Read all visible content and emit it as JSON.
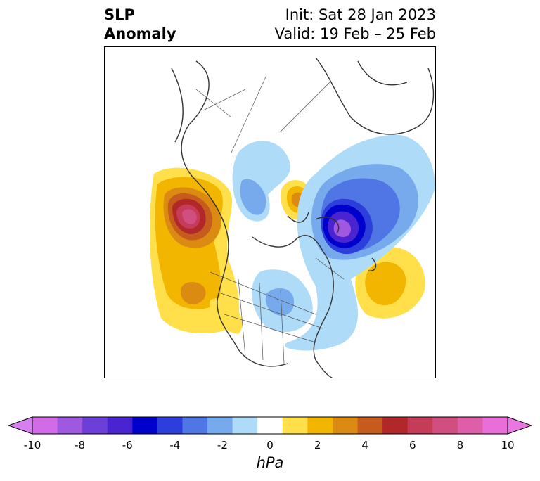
{
  "header": {
    "field_line1": "SLP",
    "field_line2": "Anomaly",
    "init_text": "Init: Sat 28 Jan 2023",
    "valid_text": "Valid: 19 Feb – 25 Feb"
  },
  "colorbar": {
    "unit": "hPa",
    "tick_labels": [
      "-10",
      "-8",
      "-6",
      "-4",
      "-2",
      "0",
      "2",
      "4",
      "6",
      "8",
      "10"
    ],
    "colors": [
      "#d26be8",
      "#9e59e0",
      "#6c40d8",
      "#4a24d0",
      "#0000cd",
      "#2c3fdc",
      "#5075e4",
      "#77aaec",
      "#aedbf8",
      "#ffffff",
      "#ffe04a",
      "#f2b500",
      "#dc8b12",
      "#c65b1e",
      "#b2282a",
      "#c43c58",
      "#d04e80",
      "#de5ea8",
      "#e86ed8"
    ],
    "under_color": "#d580ee",
    "over_color": "#e878e0"
  }
}
